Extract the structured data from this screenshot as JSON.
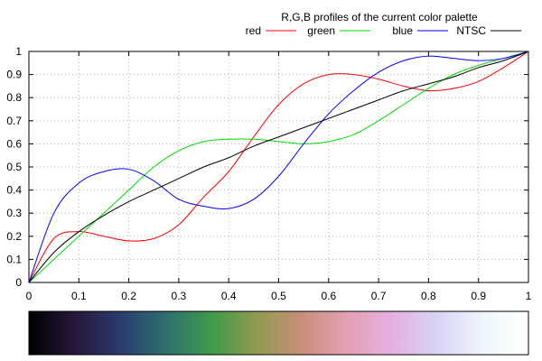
{
  "chart_data": {
    "type": "line",
    "title": "R,G,B profiles of the current color palette",
    "xlim": [
      0,
      1
    ],
    "ylim": [
      0,
      1
    ],
    "x_ticks": [
      "0",
      "0.1",
      "0.2",
      "0.3",
      "0.4",
      "0.5",
      "0.6",
      "0.7",
      "0.8",
      "0.9",
      "1"
    ],
    "y_ticks": [
      "0",
      "0.1",
      "0.2",
      "0.3",
      "0.4",
      "0.5",
      "0.6",
      "0.7",
      "0.8",
      "0.9",
      "1"
    ],
    "grid": true,
    "legend_position": "top-right",
    "x": [
      0,
      0.05,
      0.1,
      0.15,
      0.2,
      0.25,
      0.3,
      0.35,
      0.4,
      0.45,
      0.5,
      0.55,
      0.6,
      0.65,
      0.7,
      0.75,
      0.8,
      0.85,
      0.9,
      0.95,
      1
    ],
    "series": [
      {
        "name": "red",
        "color": "#ff0000",
        "values": [
          0,
          0.19,
          0.22,
          0.2,
          0.18,
          0.19,
          0.25,
          0.37,
          0.48,
          0.63,
          0.77,
          0.86,
          0.9,
          0.9,
          0.88,
          0.85,
          0.83,
          0.84,
          0.87,
          0.93,
          1
        ]
      },
      {
        "name": "green",
        "color": "#00dd00",
        "values": [
          0,
          0.1,
          0.2,
          0.3,
          0.4,
          0.5,
          0.57,
          0.61,
          0.62,
          0.62,
          0.61,
          0.6,
          0.61,
          0.64,
          0.7,
          0.77,
          0.84,
          0.9,
          0.94,
          0.97,
          1
        ]
      },
      {
        "name": "blue",
        "color": "#0000ff",
        "values": [
          0,
          0.3,
          0.43,
          0.48,
          0.49,
          0.44,
          0.36,
          0.33,
          0.32,
          0.36,
          0.46,
          0.6,
          0.73,
          0.83,
          0.91,
          0.96,
          0.98,
          0.97,
          0.96,
          0.97,
          1
        ]
      },
      {
        "name": "NTSC",
        "color": "#000000",
        "values": [
          0,
          0.13,
          0.22,
          0.29,
          0.35,
          0.4,
          0.45,
          0.5,
          0.54,
          0.59,
          0.63,
          0.67,
          0.71,
          0.75,
          0.79,
          0.83,
          0.86,
          0.89,
          0.93,
          0.96,
          1
        ]
      }
    ],
    "colorbar": {
      "stops": [
        "#000000",
        "#26173a",
        "#2b3a6e",
        "#2e6e6e",
        "#3d9a4a",
        "#8f9a4f",
        "#c88f7a",
        "#e4a0b4",
        "#e4b0e2",
        "#d9d4f6",
        "#eef7fa",
        "#ffffff"
      ]
    }
  }
}
